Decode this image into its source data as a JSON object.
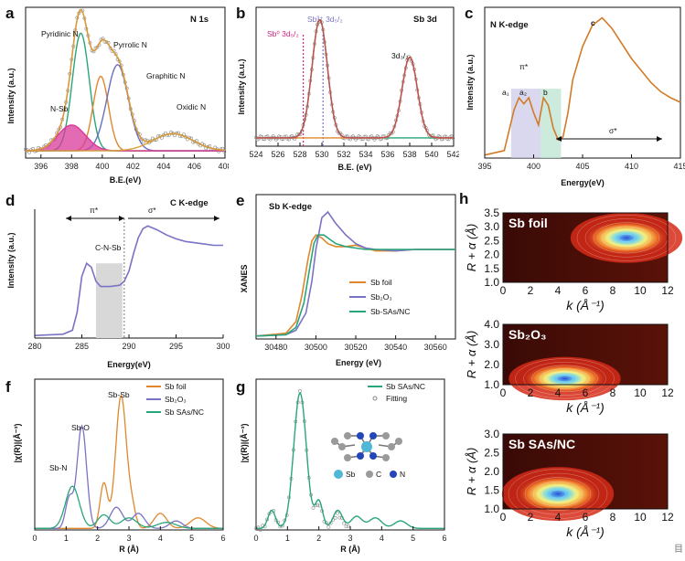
{
  "figure": {
    "watermark": "目"
  },
  "chart_data": [
    {
      "panel": "a",
      "type": "line",
      "title": "N 1s",
      "xlabel": "B.E.(eV)",
      "ylabel": "Intensity (a.u.)",
      "xlim": [
        395,
        408
      ],
      "xreverse": false,
      "xticks": [
        396,
        398,
        400,
        402,
        404,
        406,
        408
      ],
      "annotations": [
        "Pyridinic N",
        "Pyrrolic N",
        "Graphitic N",
        "N-Sb",
        "Oxidic N"
      ],
      "series": [
        {
          "color": "#2aa57a",
          "peaks": [
            [
              398.6,
              0.82,
              0.55
            ]
          ],
          "base": 0.05
        },
        {
          "color": "#e0872b",
          "peaks": [
            [
              399.9,
              0.52,
              0.5
            ]
          ],
          "base": 0.05
        },
        {
          "color": "#6a6fc2",
          "peaks": [
            [
              401.0,
              0.6,
              0.7
            ]
          ],
          "base": 0.05
        },
        {
          "color": "#d8399b",
          "peaks": [
            [
              398.0,
              0.18,
              0.9
            ]
          ],
          "base": 0.05,
          "fill": true
        },
        {
          "color": "#d9a23b",
          "peaks": [
            [
              404.6,
              0.12,
              1.3
            ]
          ],
          "base": 0.05
        }
      ],
      "fit": {
        "color": "#d79a3a",
        "peaks": [
          [
            398.6,
            0.82,
            0.55
          ],
          [
            399.9,
            0.52,
            0.5
          ],
          [
            401.0,
            0.6,
            0.7
          ],
          [
            398.0,
            0.18,
            0.9
          ],
          [
            404.6,
            0.12,
            1.3
          ]
        ],
        "base": 0.05
      }
    },
    {
      "panel": "b",
      "type": "line",
      "title": "Sb 3d",
      "xlabel": "B.E. (eV)",
      "ylabel": "Intensity (a.u.)",
      "xlim": [
        524,
        542
      ],
      "xticks": [
        524,
        526,
        528,
        530,
        532,
        534,
        536,
        538,
        540,
        542
      ],
      "annotations": [
        "Sb⁰ 3d₅/₂",
        "Sb³⁺ 3d₅/₂",
        "3d₃/₂"
      ],
      "reference_lines": [
        528.3,
        530.1
      ],
      "series": [
        {
          "color": "#2aa57a",
          "peaks": [
            [
              529.8,
              0.85,
              0.7
            ]
          ],
          "base": 0.06
        },
        {
          "color": "#e0872b",
          "peaks": [
            [
              538.0,
              0.58,
              0.7
            ]
          ],
          "base": 0.06
        }
      ],
      "fit": {
        "color": "#c0504d",
        "peaks": [
          [
            529.8,
            0.85,
            0.7
          ],
          [
            538.0,
            0.58,
            0.7
          ]
        ],
        "base": 0.06
      }
    },
    {
      "panel": "c",
      "type": "line",
      "title": "N K-edge",
      "xlabel": "Energy(eV)",
      "ylabel": "Intensity (a.u.)",
      "xlim": [
        395,
        415
      ],
      "xticks": [
        395,
        400,
        405,
        410,
        415
      ],
      "annotations": [
        "π*",
        "a₁",
        "a₂",
        "b",
        "c",
        "σ*"
      ],
      "x": [
        395,
        397,
        398,
        398.5,
        399,
        399.5,
        400,
        400.5,
        401,
        401.5,
        402,
        402.5,
        403,
        403.5,
        404,
        405,
        406,
        407,
        408,
        409,
        410,
        411,
        412,
        413,
        414,
        415
      ],
      "y": [
        0.02,
        0.05,
        0.32,
        0.4,
        0.36,
        0.4,
        0.3,
        0.22,
        0.4,
        0.35,
        0.2,
        0.12,
        0.14,
        0.3,
        0.52,
        0.74,
        0.88,
        0.93,
        0.86,
        0.76,
        0.66,
        0.58,
        0.5,
        0.44,
        0.4,
        0.37
      ]
    },
    {
      "panel": "d",
      "type": "line",
      "title": "C K-edge",
      "xlabel": "Energy(eV)",
      "ylabel": "Intensity (a.u.)",
      "xlim": [
        280,
        300
      ],
      "xticks": [
        280,
        285,
        290,
        295,
        300
      ],
      "annotations": [
        "π*",
        "σ*",
        "C-N-Sb"
      ],
      "x": [
        280,
        283,
        284,
        284.5,
        285,
        285.5,
        286,
        286.5,
        287,
        288,
        289,
        289.5,
        290,
        290.5,
        291,
        291.5,
        292,
        293,
        294,
        295,
        296,
        297,
        298,
        299,
        300
      ],
      "y": [
        0.02,
        0.03,
        0.06,
        0.2,
        0.48,
        0.58,
        0.55,
        0.44,
        0.4,
        0.4,
        0.41,
        0.44,
        0.52,
        0.66,
        0.78,
        0.85,
        0.87,
        0.84,
        0.8,
        0.77,
        0.75,
        0.74,
        0.73,
        0.72,
        0.72
      ]
    },
    {
      "panel": "e",
      "type": "line",
      "title": "Sb K-edge",
      "xlabel": "Energy (eV)",
      "ylabel": "XANES",
      "xlim": [
        30470,
        30570
      ],
      "xticks": [
        30480,
        30500,
        30520,
        30540,
        30560
      ],
      "legend": [
        "Sb foil",
        "Sb₂O₃",
        "Sb-SAs/NC"
      ],
      "legend_placement": "bottom-right",
      "series": [
        {
          "name": "Sb foil",
          "color": "#e0872b",
          "x": [
            30470,
            30485,
            30490,
            30493,
            30496,
            30498,
            30500,
            30503,
            30506,
            30510,
            30515,
            30520,
            30525,
            30530,
            30540,
            30550,
            30560,
            30570
          ],
          "y": [
            0.02,
            0.04,
            0.12,
            0.3,
            0.55,
            0.68,
            0.72,
            0.7,
            0.66,
            0.64,
            0.64,
            0.65,
            0.63,
            0.61,
            0.61,
            0.62,
            0.62,
            0.62
          ]
        },
        {
          "name": "Sb₂O₃",
          "color": "#7a73c5",
          "x": [
            30470,
            30485,
            30490,
            30495,
            30498,
            30500,
            30503,
            30506,
            30510,
            30515,
            30520,
            30525,
            30530,
            30540,
            30550,
            30560,
            30570
          ],
          "y": [
            0.02,
            0.03,
            0.06,
            0.18,
            0.4,
            0.62,
            0.84,
            0.88,
            0.8,
            0.72,
            0.66,
            0.63,
            0.62,
            0.61,
            0.62,
            0.62,
            0.62
          ]
        },
        {
          "name": "Sb-SAs/NC",
          "color": "#2aa57a",
          "x": [
            30470,
            30485,
            30490,
            30494,
            30497,
            30499,
            30501,
            30504,
            30507,
            30510,
            30515,
            30520,
            30525,
            30530,
            30540,
            30550,
            30560,
            30570
          ],
          "y": [
            0.02,
            0.03,
            0.08,
            0.25,
            0.5,
            0.66,
            0.72,
            0.72,
            0.69,
            0.66,
            0.64,
            0.63,
            0.62,
            0.62,
            0.62,
            0.62,
            0.62,
            0.62
          ]
        }
      ]
    },
    {
      "panel": "f",
      "type": "line",
      "xlabel": "R (Å)",
      "ylabel": "|χ(R)|(Å⁻³)",
      "xlim": [
        0,
        6
      ],
      "xticks": [
        0,
        1,
        2,
        3,
        4,
        5,
        6
      ],
      "legend": [
        "Sb foil",
        "Sb₂O₃",
        "Sb SAs/NC"
      ],
      "legend_placement": "top-right",
      "annotations": [
        "Sb-Sb",
        "Sb-O",
        "Sb-N"
      ],
      "series": [
        {
          "name": "Sb foil",
          "color": "#e0872b",
          "peaks": [
            [
              2.75,
              0.88,
              0.17
            ],
            [
              2.2,
              0.3,
              0.12
            ],
            [
              3.1,
              0.12,
              0.12
            ],
            [
              4.0,
              0.1,
              0.2
            ],
            [
              5.2,
              0.07,
              0.25
            ]
          ],
          "base": 0.01
        },
        {
          "name": "Sb₂O₃",
          "color": "#7a73c5",
          "peaks": [
            [
              1.5,
              0.68,
              0.15
            ],
            [
              1.1,
              0.2,
              0.12
            ],
            [
              2.6,
              0.14,
              0.2
            ],
            [
              3.3,
              0.1,
              0.2
            ],
            [
              4.5,
              0.05,
              0.2
            ]
          ],
          "base": 0.01
        },
        {
          "name": "Sb SAs/NC",
          "color": "#2aa57a",
          "peaks": [
            [
              1.2,
              0.28,
              0.22
            ],
            [
              2.2,
              0.09,
              0.2
            ],
            [
              3.0,
              0.07,
              0.25
            ],
            [
              4.2,
              0.04,
              0.3
            ]
          ],
          "base": 0.01
        }
      ]
    },
    {
      "panel": "g",
      "type": "line",
      "xlabel": "R (Å)",
      "ylabel": "|χ(R)|(Å⁻³)",
      "xlim": [
        0,
        6
      ],
      "xticks": [
        0,
        1,
        2,
        3,
        4,
        5,
        6
      ],
      "legend": [
        "Sb SAs/NC",
        "Fitting"
      ],
      "legend_placement": "top-right",
      "inset_legend": [
        "Sb",
        "C",
        "N"
      ],
      "series": [
        {
          "name": "Sb SAs/NC",
          "color": "#2aa57a",
          "peaks": [
            [
              1.4,
              0.9,
              0.2
            ],
            [
              0.5,
              0.12,
              0.12
            ],
            [
              2.0,
              0.18,
              0.12
            ],
            [
              2.6,
              0.12,
              0.15
            ],
            [
              3.2,
              0.08,
              0.18
            ],
            [
              3.8,
              0.07,
              0.2
            ],
            [
              4.6,
              0.05,
              0.2
            ]
          ],
          "base": 0.01
        },
        {
          "name": "Fitting",
          "color": "#b8d8b0",
          "peaks": [
            [
              1.4,
              0.9,
              0.2
            ],
            [
              0.5,
              0.12,
              0.12
            ],
            [
              2.0,
              0.15,
              0.12
            ],
            [
              2.6,
              0.09,
              0.15
            ]
          ],
          "base": 0.01
        }
      ]
    },
    {
      "panel": "h",
      "type": "heatmap",
      "xlabel": "k (Å⁻¹)",
      "ylabel": "R + α (Å)",
      "xticks": [
        0,
        2,
        4,
        6,
        8,
        10,
        12
      ],
      "maps": [
        {
          "label": "Sb foil",
          "ylim": [
            1.0,
            3.5
          ],
          "yticks": [
            1.0,
            1.5,
            2.0,
            2.5,
            3.0,
            3.5
          ],
          "hotspot": [
            9,
            2.6
          ]
        },
        {
          "label": "Sb₂O₃",
          "ylim": [
            1.0,
            4.0
          ],
          "yticks": [
            1.0,
            2.0,
            3.0,
            4.0
          ],
          "hotspot": [
            4.5,
            1.3
          ]
        },
        {
          "label": "Sb SAs/NC",
          "ylim": [
            1.0,
            3.0
          ],
          "yticks": [
            1.0,
            1.5,
            2.0,
            2.5,
            3.0
          ],
          "hotspot": [
            4,
            1.4
          ]
        }
      ]
    }
  ]
}
